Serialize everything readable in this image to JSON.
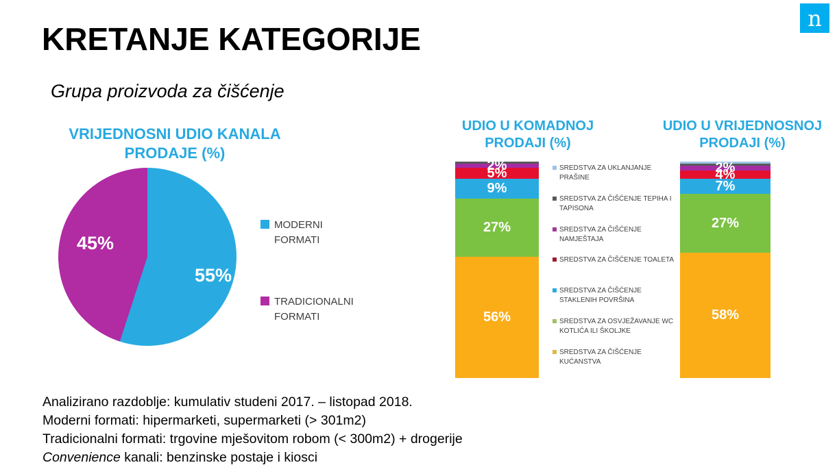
{
  "slide": {
    "title": "KRETANJE KATEGORIJE",
    "subtitle": "Grupa proizvoda za čišćenje",
    "logo_letter": "n",
    "footer_lines": [
      "Analizirano razdoblje: kumulativ studeni 2017. – listopad 2018.",
      "Moderni formati: hipermarketi, supermarketi (> 301m2)",
      "Tradicionalni formati: trgovine mješovitom robom (< 300m2) + drogerije"
    ],
    "footer_line4_italic": "Convenience",
    "footer_line4_rest": " kanali: benzinske postaje i kiosci"
  },
  "colors": {
    "accent_cyan": "#27a9e1",
    "logo_blue": "#00aeef",
    "pie_blue": "#29abe2",
    "pie_magenta": "#b12ba3"
  },
  "chart_data": [
    {
      "type": "pie",
      "title": "VRIJEDNOSNI UDIO KANALA PRODAJE (%)",
      "legend_position": "right",
      "slices": [
        {
          "label": "MODERNI FORMATI",
          "value": 55,
          "display": "55%",
          "color": "#29abe2"
        },
        {
          "label": "TRADICIONALNI FORMATI",
          "value": 45,
          "display": "45%",
          "color": "#b12ba3"
        }
      ]
    },
    {
      "type": "bar",
      "stacked": true,
      "title": "UDIO U KOMADNOJ PRODAJI (%)",
      "ylim": [
        0,
        100
      ],
      "segments_top_to_bottom": [
        {
          "category": "SREDSTVA ZA UKLANJANJE PRAŠINE",
          "value": 0,
          "display": "",
          "color": "#9dc3e6"
        },
        {
          "category": "SREDSTVA ZA ČIŠĆENJE TEPIHA I TAPISONA",
          "value": 1,
          "display": "",
          "color": "#595959"
        },
        {
          "category": "SREDSTVA ZA ČIŠĆENJE NAMJEŠTAJA",
          "value": 2,
          "display": "2%",
          "color": "#a42ba3"
        },
        {
          "category": "SREDSTVA ZA ČIŠĆENJE TOALETA",
          "value": 5,
          "display": "5%",
          "color": "#e5102e"
        },
        {
          "category": "SREDSTVA ZA ČIŠĆENJE STAKLENIH POVRŠINA",
          "value": 9,
          "display": "9%",
          "color": "#29abe2"
        },
        {
          "category": "SREDSTVA ZA OSVJEŽAVANJE WC KOTLIĆA ILI ŠKOLJKE",
          "value": 27,
          "display": "27%",
          "color": "#7cc242"
        },
        {
          "category": "SREDSTVA ZA ČIŠĆENJE KUĆANSTVA",
          "value": 56,
          "display": "56%",
          "color": "#fbad18"
        }
      ]
    },
    {
      "type": "bar",
      "stacked": true,
      "title": "UDIO U VRIJEDNOSNOJ PRODAJI (%)",
      "ylim": [
        0,
        100
      ],
      "segments_top_to_bottom": [
        {
          "category": "SREDSTVA ZA UKLANJANJE PRAŠINE",
          "value": 1,
          "display": "",
          "color": "#9dc3e6"
        },
        {
          "category": "SREDSTVA ZA ČIŠĆENJE TEPIHA I TAPISONA",
          "value": 1,
          "display": "",
          "color": "#595959"
        },
        {
          "category": "SREDSTVA ZA ČIŠĆENJE NAMJEŠTAJA",
          "value": 2,
          "display": "2%",
          "color": "#a42ba3"
        },
        {
          "category": "SREDSTVA ZA ČIŠĆENJE TOALETA",
          "value": 4,
          "display": "4%",
          "color": "#e5102e"
        },
        {
          "category": "SREDSTVA ZA ČIŠĆENJE STAKLENIH POVRŠINA",
          "value": 7,
          "display": "7%",
          "color": "#29abe2"
        },
        {
          "category": "SREDSTVA ZA OSVJEŽAVANJE WC KOTLIĆA ILI ŠKOLJKE",
          "value": 27,
          "display": "27%",
          "color": "#7cc242"
        },
        {
          "category": "SREDSTVA ZA ČIŠĆENJE KUĆANSTVA",
          "value": 58,
          "display": "58%",
          "color": "#fbad18"
        }
      ]
    }
  ],
  "bar_legend": {
    "items": [
      {
        "label": "SREDSTVA ZA UKLANJANJE PRAŠINE",
        "color": "#9dc3e6"
      },
      {
        "label": "SREDSTVA ZA ČIŠĆENJE TEPIHA I TAPISONA",
        "color": "#595959"
      },
      {
        "label": "SREDSTVA ZA ČIŠĆENJE NAMJEŠTAJA",
        "color": "#9c3a97"
      },
      {
        "label": "SREDSTVA ZA ČIŠĆENJE TOALETA",
        "color": "#9e1b32"
      },
      {
        "label": "SREDSTVA ZA ČIŠĆENJE STAKLENIH POVRŠINA",
        "color": "#29abe2"
      },
      {
        "label": "SREDSTVA ZA OSVJEŽAVANJE WC KOTLIĆA ILI ŠKOLJKE",
        "color": "#a2c162"
      },
      {
        "label": "SREDSTVA ZA ČIŠĆENJE KUĆANSTVA",
        "color": "#ddb945"
      }
    ]
  }
}
